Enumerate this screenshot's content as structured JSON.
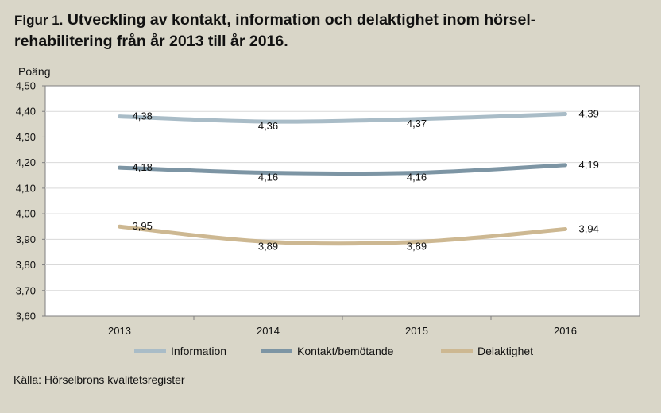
{
  "figure": {
    "title_prefix": "Figur 1.",
    "title_line1": "Utveckling av kontakt, information och delaktighet inom hörsel-",
    "title_line2": "rehabilitering från år 2013 till år 2016.",
    "source": "Källa: Hörselbrons kvalitetsregister"
  },
  "chart_data": {
    "type": "line",
    "ylabel": "Poäng",
    "xlabel": "",
    "ylim": [
      3.6,
      4.5
    ],
    "yticks": [
      3.6,
      3.7,
      3.8,
      3.9,
      4.0,
      4.1,
      4.2,
      4.3,
      4.4,
      4.5
    ],
    "ytick_labels": [
      "3,60",
      "3,70",
      "3,80",
      "3,90",
      "4,00",
      "4,10",
      "4,20",
      "4,30",
      "4,40",
      "4,50"
    ],
    "categories": [
      "2013",
      "2014",
      "2015",
      "2016"
    ],
    "grid": true,
    "legend": "bottom",
    "series": [
      {
        "name": "Information",
        "color": "#a9bcc7",
        "values": [
          4.38,
          4.36,
          4.37,
          4.39
        ],
        "labels": [
          "4,38",
          "4,36",
          "4,37",
          "4,39"
        ]
      },
      {
        "name": "Kontakt/bemötande",
        "color": "#7d95a4",
        "values": [
          4.18,
          4.16,
          4.16,
          4.19
        ],
        "labels": [
          "4,18",
          "4,16",
          "4,16",
          "4,19"
        ]
      },
      {
        "name": "Delaktighet",
        "color": "#cdb892",
        "values": [
          3.95,
          3.89,
          3.89,
          3.94
        ],
        "labels": [
          "3,95",
          "3,89",
          "3,89",
          "3,94"
        ]
      }
    ]
  }
}
